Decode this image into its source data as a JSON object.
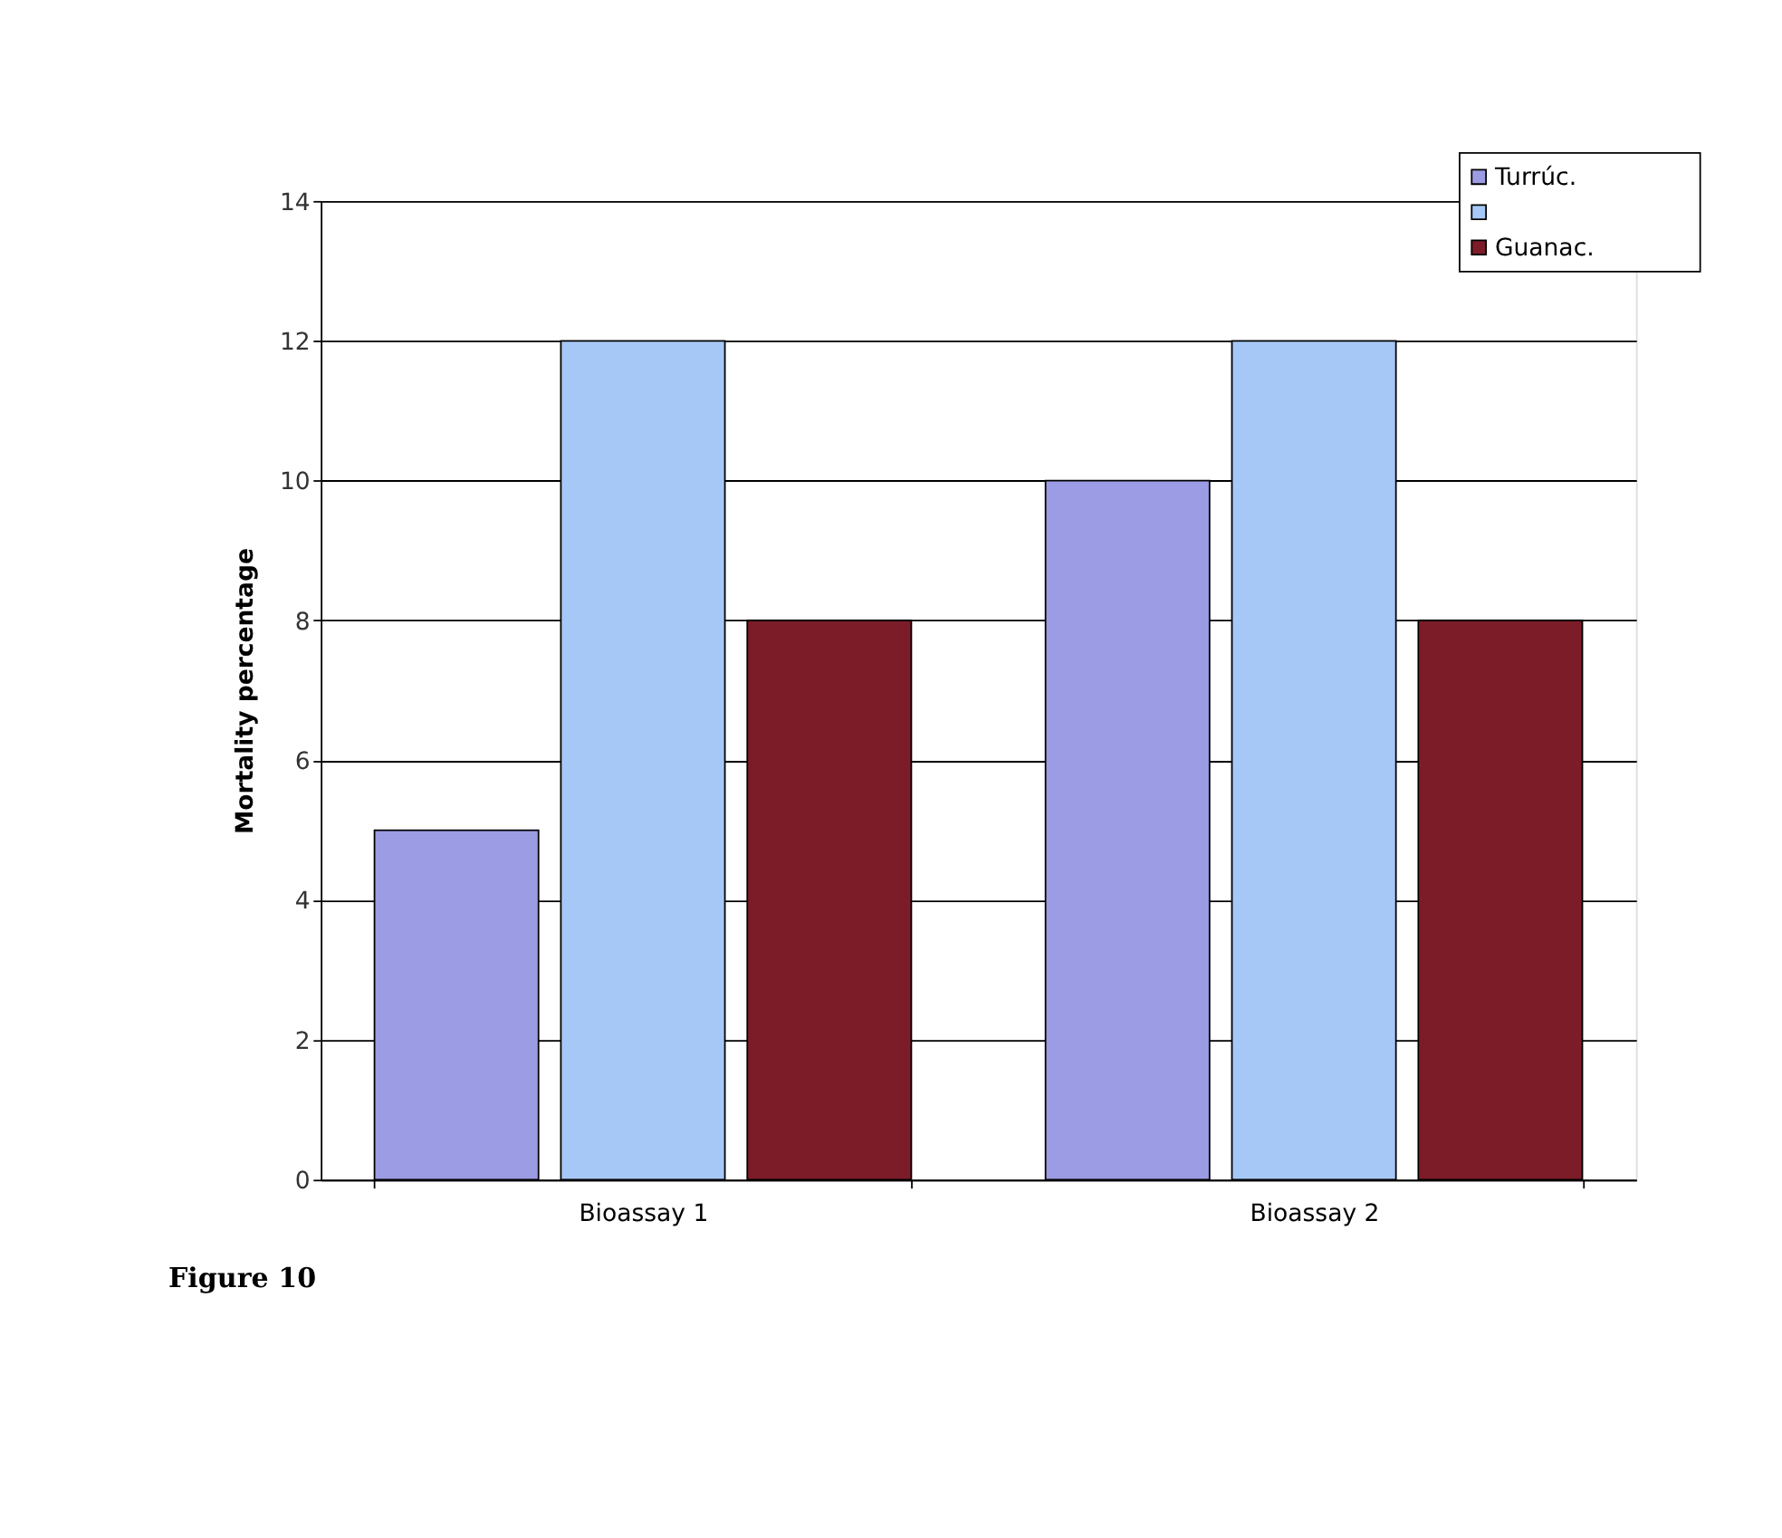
{
  "chart_data": {
    "type": "bar",
    "ylabel": "Mortality percentage",
    "categories": [
      "Bioassay 1",
      "Bioassay 2"
    ],
    "series": [
      {
        "name": "Turrúc.",
        "color": "#9c9ce4",
        "values": [
          5,
          10
        ]
      },
      {
        "color": "#a6c8f6",
        "values": [
          12,
          12
        ]
      },
      {
        "name": "Guanac.",
        "color": "#7c1c28",
        "values": [
          8,
          8
        ]
      }
    ],
    "ylim": [
      0,
      14
    ],
    "yticks": [
      0,
      2,
      4,
      6,
      8,
      10,
      12,
      14
    ],
    "grid": "y",
    "legend": "top right",
    "annotations": [
      "Figure 10"
    ]
  }
}
